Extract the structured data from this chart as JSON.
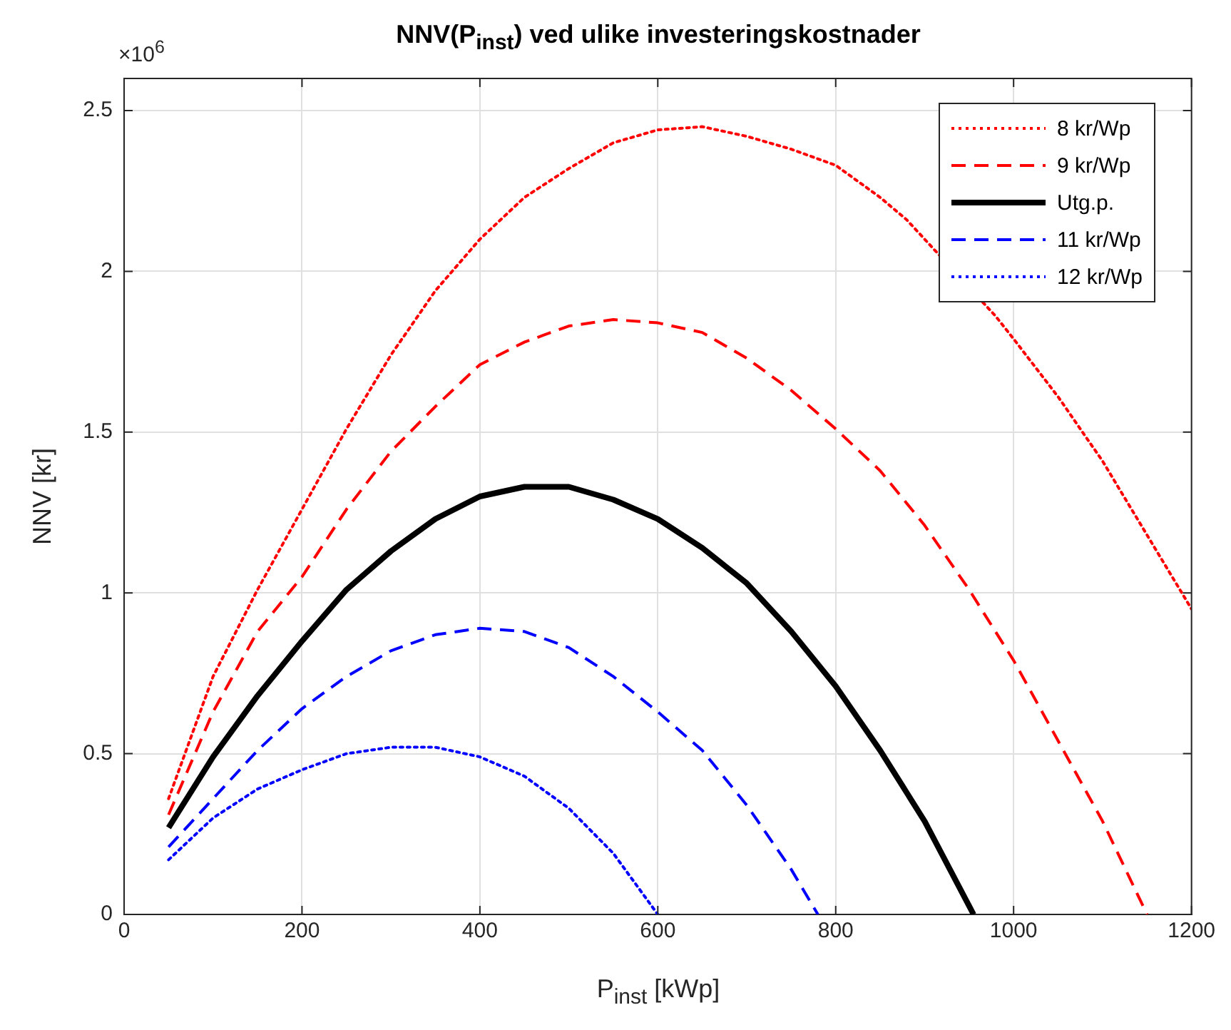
{
  "chart_data": {
    "type": "line",
    "title": "NNV(P$_{inst}$) ved ulike investeringskostnader",
    "xlabel": "P$_{inst}$ [kWp]",
    "ylabel": "NNV [kr]",
    "annotations": [
      "×10$^{6}$"
    ],
    "xlim": [
      0,
      1200
    ],
    "xticks": [
      0,
      200,
      400,
      600,
      800,
      1000,
      1200
    ],
    "ylim": [
      0,
      2.6
    ],
    "yticks": [
      0,
      0.5,
      1,
      1.5,
      2,
      2.5
    ],
    "grid": true,
    "legend": "top right",
    "marker": "none",
    "series": [
      {
        "name": "8 kr/Wp",
        "color": "#ff0000",
        "line_style": "dotted",
        "x": [
          50,
          100,
          150,
          200,
          250,
          300,
          350,
          400,
          450,
          500,
          550,
          600,
          650,
          700,
          750,
          800,
          850,
          880,
          980,
          1000,
          1050,
          1100,
          1150,
          1200
        ],
        "values": [
          0.36,
          0.74,
          1.01,
          1.26,
          1.51,
          1.74,
          1.94,
          2.1,
          2.23,
          2.32,
          2.4,
          2.44,
          2.45,
          2.42,
          2.38,
          2.33,
          2.23,
          2.16,
          1.86,
          1.79,
          1.61,
          1.41,
          1.18,
          0.95
        ]
      },
      {
        "name": "9 kr/Wp",
        "color": "#ff0000",
        "line_style": "dashed",
        "x": [
          50,
          100,
          150,
          200,
          250,
          300,
          350,
          400,
          450,
          500,
          550,
          600,
          650,
          700,
          750,
          800,
          850,
          900,
          950,
          1000,
          1050,
          1100,
          1150
        ],
        "values": [
          0.31,
          0.63,
          0.88,
          1.05,
          1.26,
          1.44,
          1.58,
          1.71,
          1.78,
          1.83,
          1.85,
          1.84,
          1.81,
          1.73,
          1.63,
          1.51,
          1.38,
          1.21,
          1.01,
          0.79,
          0.54,
          0.29,
          0
        ]
      },
      {
        "name": "Utg.p.",
        "color": "#000000",
        "line_style": "solid",
        "x": [
          50,
          100,
          150,
          200,
          250,
          300,
          350,
          400,
          450,
          500,
          550,
          600,
          650,
          700,
          750,
          800,
          850,
          900,
          955
        ],
        "values": [
          0.27,
          0.49,
          0.68,
          0.85,
          1.01,
          1.13,
          1.23,
          1.3,
          1.33,
          1.33,
          1.29,
          1.23,
          1.14,
          1.03,
          0.88,
          0.71,
          0.51,
          0.29,
          0
        ]
      },
      {
        "name": "11 kr/Wp",
        "color": "#0000ff",
        "line_style": "dashed",
        "x": [
          50,
          100,
          150,
          200,
          250,
          300,
          350,
          400,
          450,
          500,
          550,
          600,
          650,
          700,
          750,
          780
        ],
        "values": [
          0.21,
          0.36,
          0.51,
          0.64,
          0.74,
          0.82,
          0.87,
          0.89,
          0.88,
          0.83,
          0.74,
          0.63,
          0.51,
          0.34,
          0.14,
          0
        ]
      },
      {
        "name": "12 kr/Wp",
        "color": "#0000ff",
        "line_style": "dotted",
        "x": [
          50,
          100,
          150,
          200,
          250,
          300,
          350,
          400,
          450,
          500,
          550,
          600
        ],
        "values": [
          0.17,
          0.3,
          0.39,
          0.45,
          0.5,
          0.52,
          0.52,
          0.49,
          0.43,
          0.33,
          0.19,
          0
        ]
      }
    ]
  }
}
